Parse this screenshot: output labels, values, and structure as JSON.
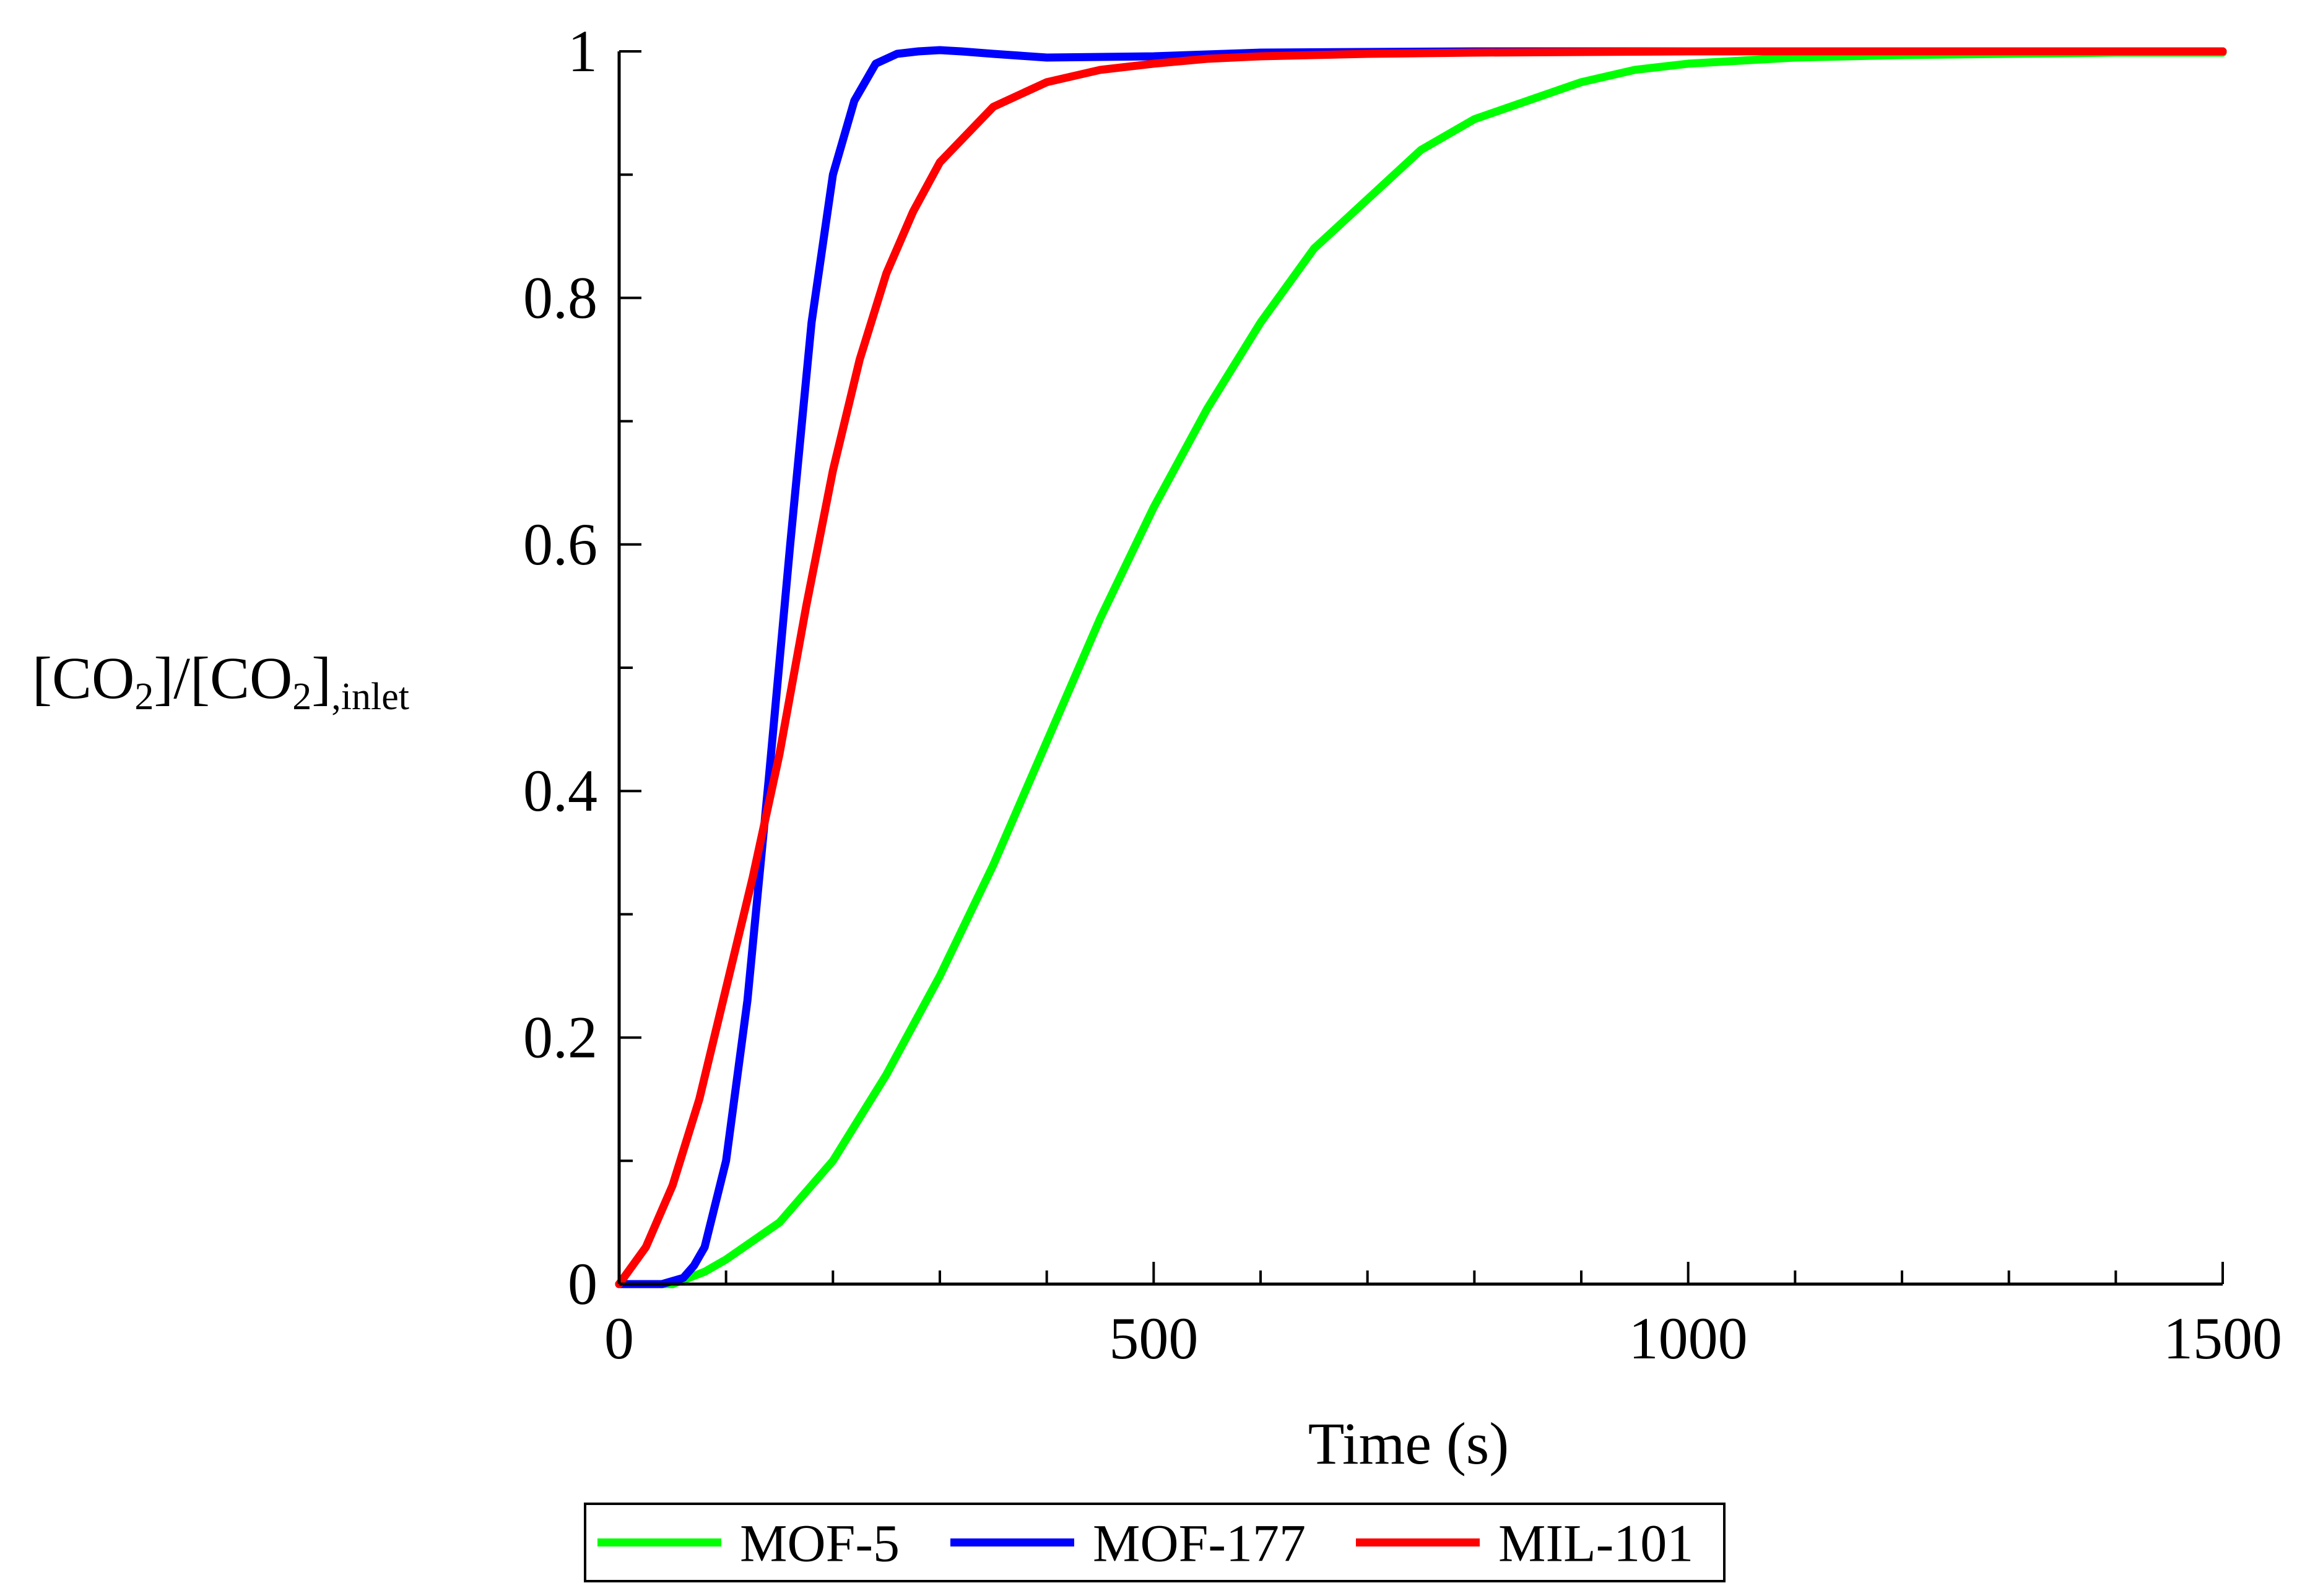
{
  "chart_data": {
    "type": "line",
    "title": "",
    "xlabel": "Time (s)",
    "ylabel": {
      "parts": [
        {
          "text": "[CO",
          "sub": false
        },
        {
          "text": "2",
          "sub": true
        },
        {
          "text": "]/[CO",
          "sub": false
        },
        {
          "text": "2",
          "sub": true
        },
        {
          "text": "]",
          "sub": false
        },
        {
          "text": ",inlet",
          "sub": true
        }
      ]
    },
    "xlim": [
      0,
      1500
    ],
    "ylim": [
      0,
      1
    ],
    "xticks": [
      0,
      500,
      1000,
      1500
    ],
    "xtick_labels": [
      "0",
      "500",
      "1000",
      "1500"
    ],
    "x_minor_step": 100,
    "yticks": [
      0,
      0.2,
      0.4,
      0.6,
      0.8,
      1
    ],
    "ytick_labels": [
      "0",
      "0.2",
      "0.4",
      "0.6",
      "0.8",
      "1"
    ],
    "y_minor_step": 0.1,
    "grid": false,
    "legend_position": "bottom",
    "series": [
      {
        "name": "MOF-5",
        "color": "#00ff00",
        "x": [
          0,
          50,
          80,
          100,
          150,
          200,
          250,
          300,
          350,
          400,
          450,
          500,
          550,
          600,
          650,
          700,
          750,
          800,
          850,
          900,
          950,
          1000,
          1100,
          1200,
          1300,
          1400,
          1500
        ],
        "y": [
          0,
          0.0,
          0.01,
          0.02,
          0.05,
          0.1,
          0.17,
          0.25,
          0.34,
          0.44,
          0.54,
          0.63,
          0.71,
          0.78,
          0.84,
          0.88,
          0.92,
          0.945,
          0.96,
          0.975,
          0.985,
          0.99,
          0.995,
          0.997,
          0.998,
          0.999,
          0.999
        ]
      },
      {
        "name": "MOF-177",
        "color": "#0000ff",
        "x": [
          0,
          20,
          40,
          60,
          70,
          80,
          100,
          120,
          140,
          160,
          180,
          200,
          220,
          240,
          260,
          280,
          300,
          320,
          350,
          400,
          500,
          600,
          800,
          1000,
          1500
        ],
        "y": [
          0,
          0.0,
          0.0,
          0.005,
          0.015,
          0.03,
          0.1,
          0.23,
          0.41,
          0.6,
          0.78,
          0.9,
          0.96,
          0.99,
          0.998,
          1.0,
          1.001,
          1.0,
          0.998,
          0.995,
          0.996,
          0.999,
          1.0,
          1.0,
          1.0
        ]
      },
      {
        "name": "MIL-101",
        "color": "#ff0000",
        "x": [
          0,
          25,
          50,
          75,
          100,
          125,
          150,
          175,
          200,
          225,
          250,
          275,
          300,
          350,
          400,
          450,
          500,
          550,
          600,
          700,
          800,
          1000,
          1500
        ],
        "y": [
          0,
          0.03,
          0.08,
          0.15,
          0.24,
          0.33,
          0.43,
          0.55,
          0.66,
          0.75,
          0.82,
          0.87,
          0.91,
          0.955,
          0.975,
          0.985,
          0.99,
          0.994,
          0.996,
          0.998,
          0.999,
          1.0,
          1.0
        ]
      }
    ]
  }
}
